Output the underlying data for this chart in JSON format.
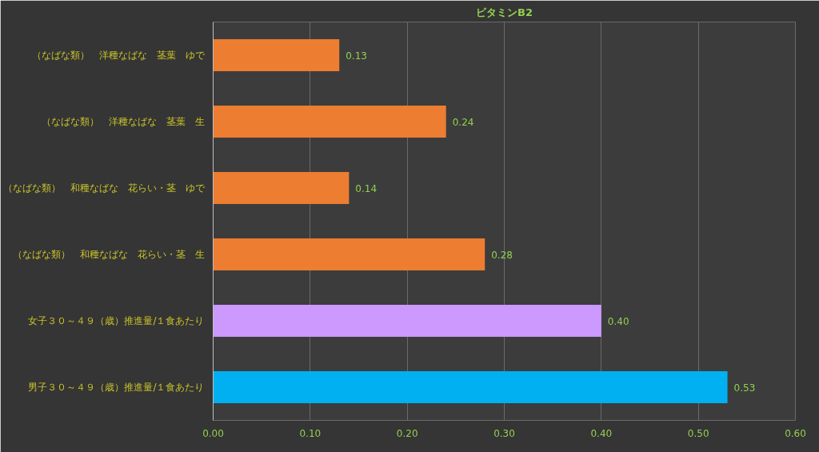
{
  "chart_data": {
    "type": "bar",
    "orientation": "horizontal",
    "title": "ビタミンB2",
    "categories": [
      "（なばな類）　洋種なばな　茎葉　ゆで",
      "（なばな類）　洋種なばな　茎葉　生",
      "（なばな類）　和種なばな　花らい・茎　ゆで",
      "（なばな類）　和種なばな　花らい・茎　生",
      "女子３０～４９（歳）推進量/１食あたり",
      "男子３０～４９（歳）推進量/１食あたり"
    ],
    "values": [
      0.13,
      0.24,
      0.14,
      0.28,
      0.4,
      0.53
    ],
    "value_labels": [
      "0.13",
      "0.24",
      "0.14",
      "0.28",
      "0.40",
      "0.53"
    ],
    "colors": [
      "#ed7d31",
      "#ed7d31",
      "#ed7d31",
      "#ed7d31",
      "#cc99ff",
      "#00b0f0"
    ],
    "xlim": [
      0,
      0.6
    ],
    "xticks": [
      {
        "value": 0,
        "label": "0.00"
      },
      {
        "value": 0.1,
        "label": "0.10"
      },
      {
        "value": 0.2,
        "label": "0.20"
      },
      {
        "value": 0.3,
        "label": "0.30"
      },
      {
        "value": 0.4,
        "label": "0.40"
      },
      {
        "value": 0.5,
        "label": "0.50"
      },
      {
        "value": 0.6,
        "label": "0.60"
      }
    ],
    "grid": "x"
  }
}
